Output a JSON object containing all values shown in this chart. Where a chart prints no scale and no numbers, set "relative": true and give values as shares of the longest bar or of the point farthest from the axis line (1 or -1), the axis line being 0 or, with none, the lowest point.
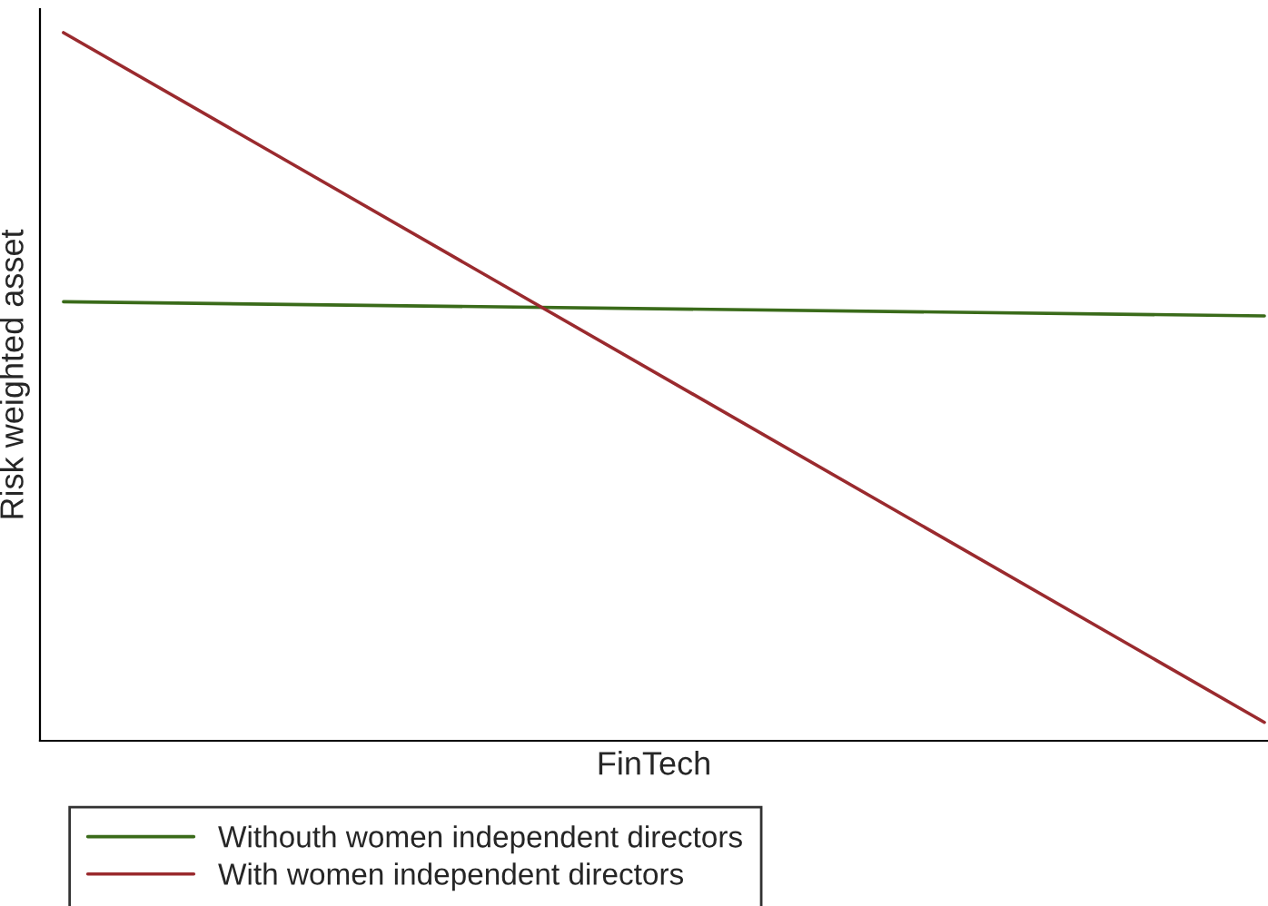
{
  "chart_data": {
    "type": "line",
    "relative": true,
    "xlabel": "FinTech",
    "ylabel": "Risk weighted asset",
    "categories": [
      null,
      null
    ],
    "series": [
      {
        "name": "Withouth women independent directors",
        "color": "#3a6b1a",
        "values": [
          0.62,
          0.6
        ]
      },
      {
        "name": "With women independent directors",
        "color": "#9a2a2e",
        "values": [
          1,
          0.026
        ]
      }
    ],
    "legend": "bottom",
    "marker": "none",
    "line_style": "solid"
  }
}
